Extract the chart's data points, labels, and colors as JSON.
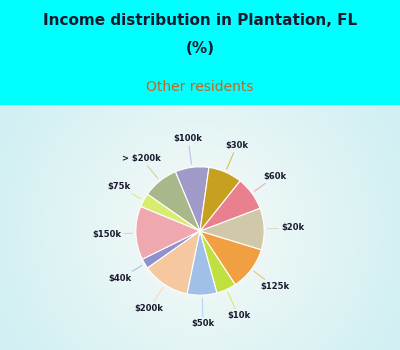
{
  "title_line1": "Income distribution in Plantation, FL",
  "title_line2": "(%)",
  "subtitle": "Other residents",
  "labels": [
    "$100k",
    "> $200k",
    "$75k",
    "$150k",
    "$40k",
    "$200k",
    "$50k",
    "$10k",
    "$125k",
    "$20k",
    "$60k",
    "$30k"
  ],
  "sizes": [
    8.5,
    9.0,
    3.5,
    13.5,
    2.5,
    12.0,
    7.5,
    5.0,
    11.0,
    10.5,
    8.5,
    8.5
  ],
  "colors": [
    "#a09ac8",
    "#a8b88a",
    "#d8ec70",
    "#f0a8b0",
    "#9090cc",
    "#f5c8a0",
    "#a0c0e8",
    "#c0e040",
    "#f0a040",
    "#d0c8a8",
    "#e88090",
    "#c8a020"
  ],
  "line_colors": [
    "#c0b8e0",
    "#d0d090",
    "#d8ec70",
    "#f8c0c8",
    "#b0b8e0",
    "#f8d8b8",
    "#b0d0f0",
    "#d0e860",
    "#f8b860",
    "#e0d8c0",
    "#f0a0b0",
    "#d8b830"
  ],
  "background_top": "#00ffff",
  "title_color": "#1a1a2e",
  "subtitle_color": "#c06820",
  "startangle": 82,
  "pie_area_gradient_left": "#e8f4e8",
  "pie_area_gradient_right": "#c8e8e0"
}
